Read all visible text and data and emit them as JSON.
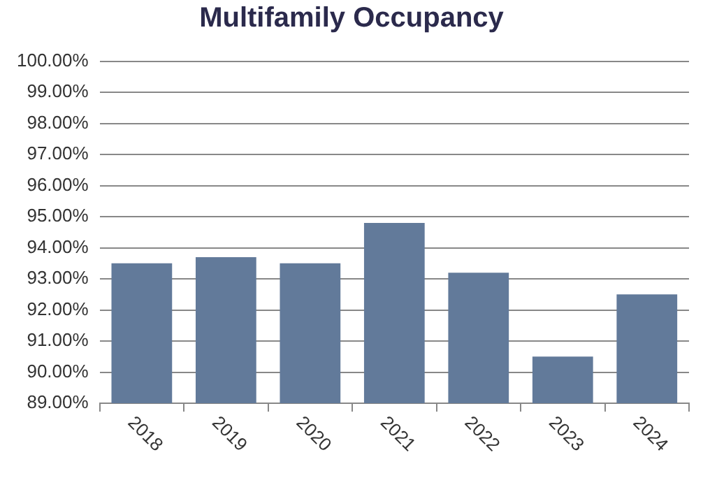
{
  "chart_data": {
    "type": "bar",
    "title": "Multifamily Occupancy",
    "categories": [
      "2018",
      "2019",
      "2020",
      "2021",
      "2022",
      "2023",
      "2024"
    ],
    "values": [
      93.5,
      93.7,
      93.5,
      94.8,
      93.2,
      90.5,
      92.5
    ],
    "color": "#627a9a",
    "ylim": [
      89,
      100
    ],
    "yticks": [
      {
        "value": 89,
        "label": "89.00%"
      },
      {
        "value": 90,
        "label": "90.00%"
      },
      {
        "value": 91,
        "label": "91.00%"
      },
      {
        "value": 92,
        "label": "92.00%"
      },
      {
        "value": 93,
        "label": "93.00%"
      },
      {
        "value": 94,
        "label": "94.00%"
      },
      {
        "value": 95,
        "label": "95.00%"
      },
      {
        "value": 96,
        "label": "96.00%"
      },
      {
        "value": 97,
        "label": "97.00%"
      },
      {
        "value": 98,
        "label": "98.00%"
      },
      {
        "value": 99,
        "label": "99.00%"
      },
      {
        "value": 100,
        "label": "100.00%"
      }
    ],
    "grid": "y",
    "legend": false
  }
}
